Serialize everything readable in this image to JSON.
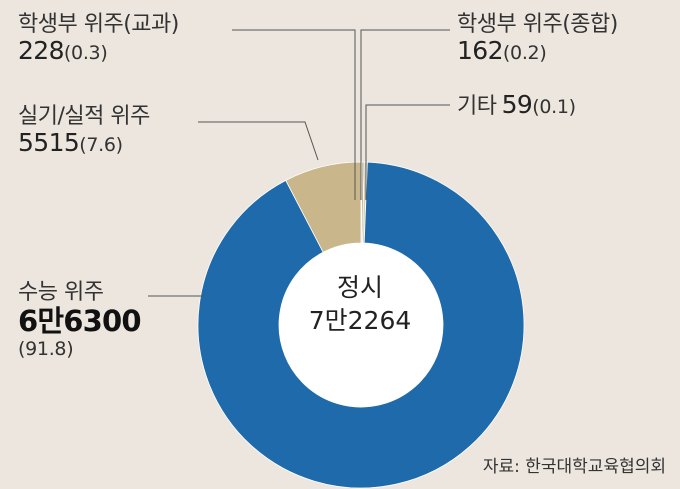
{
  "chart_data": {
    "type": "pie",
    "style": "donut",
    "center_label": "정시",
    "center_value": "7만2264",
    "slices": [
      {
        "name": "수능 위주",
        "value": 66300,
        "value_label": "6만6300",
        "percent_label": "(91.8)",
        "color": "#1e6aaa"
      },
      {
        "name": "실기/실적 위주",
        "value": 5515,
        "value_label": "5515",
        "percent_label": "(7.6)",
        "color": "#c9b68b"
      },
      {
        "name": "학생부 위주(교과)",
        "value": 228,
        "value_label": "228",
        "percent_label": "(0.3)",
        "color": "#d9cfb4"
      },
      {
        "name": "학생부 위주(종합)",
        "value": 162,
        "value_label": "162",
        "percent_label": "(0.2)",
        "color": "#b9b09a"
      },
      {
        "name": "기타",
        "value": 59,
        "value_label": "59",
        "percent_label": "(0.1)",
        "color": "#8e8878"
      }
    ],
    "source": "자료: 한국대학교육협의회"
  }
}
